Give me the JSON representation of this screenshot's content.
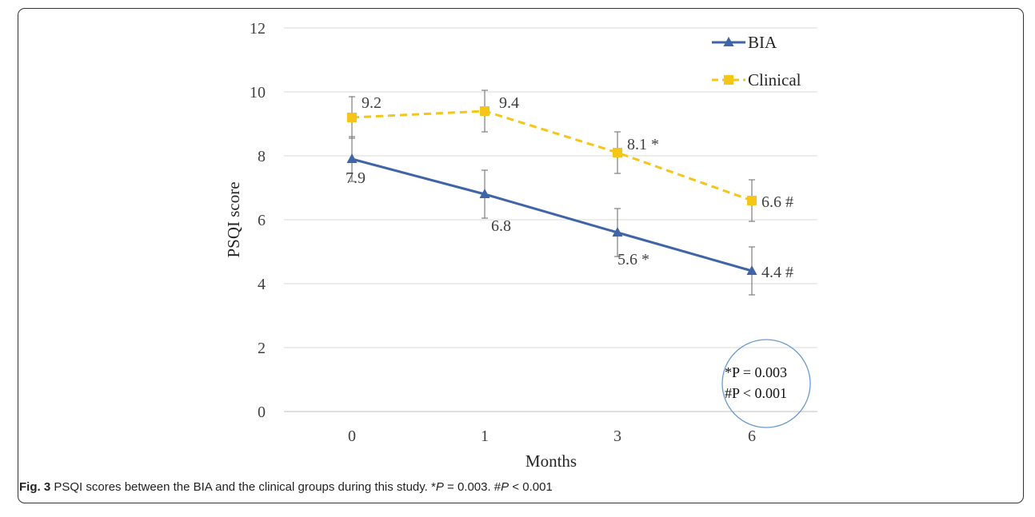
{
  "figure": {
    "caption_label": "Fig. 3",
    "caption_text_1": " PSQI scores between the BIA and the clinical groups during this study. *",
    "caption_p1": "P",
    "caption_text_2": " = 0.003. #",
    "caption_p2": "P",
    "caption_text_3": " < 0.001"
  },
  "chart_data": {
    "type": "line",
    "title": "",
    "xlabel": "Months",
    "ylabel": "PSQI score",
    "categories": [
      "0",
      "1",
      "3",
      "6"
    ],
    "ylim": [
      0,
      12
    ],
    "yticks": [
      0,
      2,
      4,
      6,
      8,
      10,
      12
    ],
    "grid": true,
    "legend_position": "top-right",
    "series": [
      {
        "name": "BIA",
        "values": [
          7.9,
          6.8,
          5.6,
          4.4
        ],
        "error": [
          0.7,
          0.75,
          0.75,
          0.75
        ],
        "labels": [
          "7.9",
          "6.8",
          "5.6 *",
          "4.4 #"
        ],
        "color": "#3f65a8",
        "line_style": "solid",
        "marker": "triangle"
      },
      {
        "name": "Clinical",
        "values": [
          9.2,
          9.4,
          8.1,
          6.6
        ],
        "error": [
          0.65,
          0.65,
          0.65,
          0.65
        ],
        "labels": [
          "9.2",
          "9.4",
          "8.1 *",
          "6.6 #"
        ],
        "color": "#f5c518",
        "line_style": "dashed",
        "marker": "square"
      }
    ],
    "annotation": {
      "lines": [
        "*P = 0.003",
        "#P < 0.001"
      ],
      "circle_color": "#6b9bd1"
    }
  }
}
